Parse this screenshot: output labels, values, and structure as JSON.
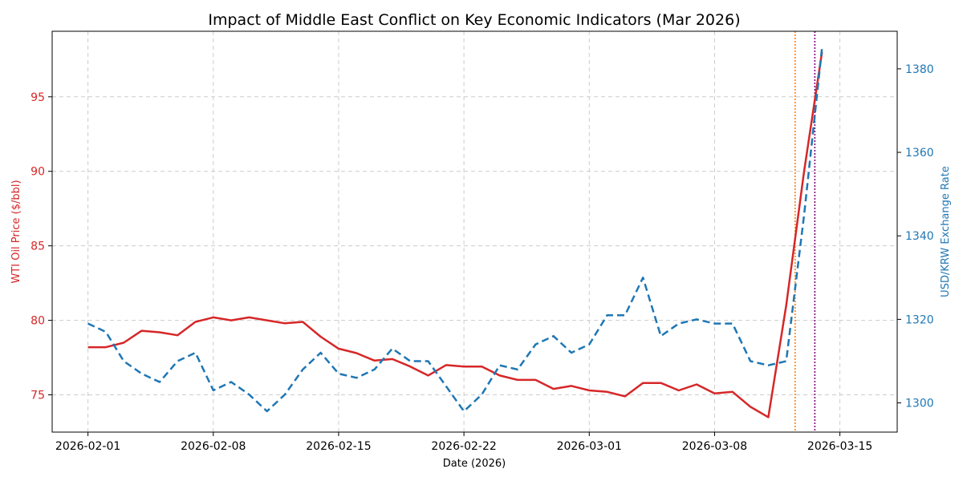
{
  "chart_data": {
    "type": "line",
    "title": "Impact of Middle East Conflict on Key Economic Indicators (Mar 2026)",
    "xlabel": "Date (2026)",
    "x_ticks": [
      "2026-02-01",
      "2026-02-08",
      "2026-02-15",
      "2026-02-22",
      "2026-03-01",
      "2026-03-08",
      "2026-03-15"
    ],
    "x_range_days": [
      -2,
      45.2
    ],
    "grid": true,
    "left_axis": {
      "label": "WTI Oil Price ($/bbl)",
      "color": "#d62728",
      "ylim": [
        72.5,
        99.4
      ],
      "ticks": [
        75,
        80,
        85,
        90,
        95
      ]
    },
    "right_axis": {
      "label": "USD/KRW Exchange Rate",
      "color": "#1f77b4",
      "ylim": [
        1293,
        1389
      ],
      "ticks": [
        1300,
        1320,
        1340,
        1360,
        1380
      ]
    },
    "series": [
      {
        "name": "WTI Oil Price",
        "axis": "left",
        "color": "#d62728",
        "style": "solid",
        "x_days": [
          0,
          1,
          2,
          3,
          4,
          5,
          6,
          7,
          8,
          9,
          10,
          11,
          12,
          13,
          14,
          15,
          16,
          17,
          18,
          19,
          20,
          21,
          22,
          23,
          24,
          25,
          26,
          27,
          28,
          29,
          30,
          31,
          32,
          33,
          34,
          35,
          36,
          37,
          38,
          39,
          40,
          41
        ],
        "values": [
          78.2,
          78.2,
          78.5,
          79.3,
          79.2,
          79.0,
          79.9,
          80.2,
          80.0,
          80.2,
          80.0,
          79.8,
          79.9,
          78.9,
          78.1,
          77.8,
          77.3,
          77.4,
          76.9,
          76.3,
          77.0,
          76.9,
          76.9,
          76.3,
          76.0,
          76.0,
          75.4,
          75.6,
          75.3,
          75.2,
          74.9,
          75.8,
          75.8,
          75.3,
          75.7,
          75.1,
          75.2,
          74.2,
          73.5,
          81.0,
          90.0,
          98.0
        ]
      },
      {
        "name": "USD/KRW Exchange Rate",
        "axis": "right",
        "color": "#1f77b4",
        "style": "dashed",
        "x_days": [
          0,
          1,
          2,
          3,
          4,
          5,
          6,
          7,
          8,
          9,
          10,
          11,
          12,
          13,
          14,
          15,
          16,
          17,
          18,
          19,
          20,
          21,
          22,
          23,
          24,
          25,
          26,
          27,
          28,
          29,
          30,
          31,
          32,
          33,
          34,
          35,
          36,
          37,
          38,
          39,
          40,
          41
        ],
        "values": [
          1319,
          1317,
          1310,
          1307,
          1305,
          1310,
          1312,
          1303,
          1305,
          1302,
          1298,
          1302,
          1308,
          1312,
          1307,
          1306,
          1308,
          1313,
          1310,
          1310,
          1304,
          1298,
          1302,
          1309,
          1308,
          1314,
          1316,
          1312,
          1314,
          1321,
          1321,
          1330,
          1316,
          1319,
          1320,
          1319,
          1319,
          1310,
          1309,
          1310,
          1345,
          1385
        ]
      }
    ],
    "vertical_markers": [
      {
        "x_day": 39.5,
        "color": "#ff7f0e",
        "style": "dotted"
      },
      {
        "x_day": 40.6,
        "color": "#800080",
        "style": "dotted"
      }
    ]
  }
}
